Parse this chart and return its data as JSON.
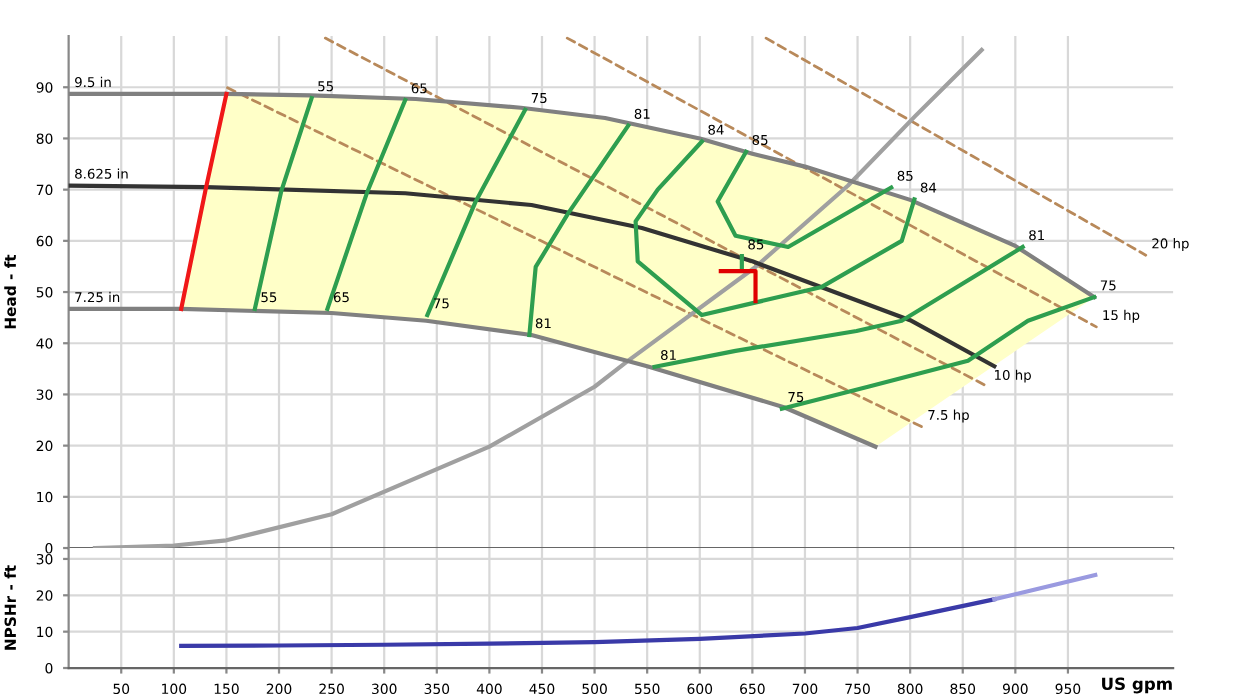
{
  "chart_data": [
    {
      "type": "line",
      "ylabel": "Head - ft",
      "xlim": [
        0,
        1050
      ],
      "ylim": [
        0,
        100
      ],
      "xticks": [
        50,
        100,
        150,
        200,
        250,
        300,
        350,
        400,
        450,
        500,
        550,
        600,
        650,
        700,
        750,
        800,
        850,
        900,
        950
      ],
      "yticks": [
        0,
        10,
        20,
        30,
        40,
        50,
        60,
        70,
        80,
        90
      ],
      "tick_labels": "y",
      "grid": true,
      "legend": false,
      "series": [
        {
          "color": "#b8895a",
          "line_style": "dashed",
          "x": [
            151,
            811
          ],
          "values": [
            89.9,
            23.7
          ]
        },
        {
          "color": "#b8895a",
          "line_style": "dashed",
          "x": [
            244,
            874
          ],
          "values": [
            99.6,
            31.5
          ]
        },
        {
          "color": "#b8895a",
          "line_style": "dashed",
          "x": [
            474,
            977
          ],
          "values": [
            99.6,
            43.2
          ]
        },
        {
          "color": "#b8895a",
          "line_style": "dashed",
          "x": [
            663,
            1024
          ],
          "values": [
            99.6,
            57.2
          ]
        },
        {
          "color": "#a0a0a0",
          "x": [
            25,
            100,
            150,
            250,
            400,
            500,
            532,
            653,
            741,
            805,
            868
          ],
          "values": [
            0,
            0.5,
            1.5,
            6.6,
            19.8,
            31.5,
            36.6,
            54.9,
            70.8,
            84.4,
            97.3
          ]
        },
        {
          "color": "#808080",
          "x": [
            0,
            150,
            230,
            330,
            430,
            510,
            600,
            650,
            700,
            800,
            900,
            975
          ],
          "values": [
            88.7,
            88.7,
            88.4,
            87.7,
            86,
            84,
            80,
            77,
            74.5,
            68,
            59,
            49
          ]
        },
        {
          "color": "#333333",
          "x": [
            0,
            130,
            320,
            440,
            545,
            650,
            800,
            880
          ],
          "values": [
            70.8,
            70.5,
            69.3,
            67,
            62.5,
            56,
            44.5,
            35.5
          ]
        },
        {
          "color": "#808080",
          "x": [
            0,
            107,
            250,
            340,
            440,
            550,
            680,
            767
          ],
          "values": [
            46.7,
            46.7,
            45.9,
            44.4,
            41.6,
            35.5,
            27.5,
            19.8
          ]
        },
        {
          "color": "#f01818",
          "x": [
            107,
            130,
            150
          ],
          "values": [
            46.7,
            69.8,
            88.7
          ]
        },
        {
          "color": "#2e9e4f",
          "x": [
            231,
            202,
            177
          ],
          "values": [
            87.9,
            69.6,
            46.7
          ]
        },
        {
          "color": "#2e9e4f",
          "x": [
            320,
            284,
            246
          ],
          "values": [
            87.5,
            69.6,
            46.7
          ]
        },
        {
          "color": "#2e9e4f",
          "x": [
            434,
            387,
            341
          ],
          "values": [
            85.6,
            67.7,
            45.5
          ]
        },
        {
          "color": "#2e9e4f",
          "x": [
            532,
            475,
            444,
            438
          ],
          "values": [
            82.5,
            65.4,
            54.9,
            41.6
          ]
        },
        {
          "color": "#2e9e4f",
          "x": [
            602,
            560,
            539,
            541,
            602,
            716,
            792,
            804
          ],
          "values": [
            79.4,
            70,
            63.8,
            56,
            45.5,
            51,
            60,
            68.1
          ]
        },
        {
          "color": "#2e9e4f",
          "x": [
            644,
            617,
            634,
            684,
            782
          ],
          "values": [
            77.4,
            67.7,
            61,
            58.8,
            70.4
          ]
        },
        {
          "color": "#2e9e4f",
          "x": [
            907,
            792,
            749,
            634,
            557
          ],
          "values": [
            58.8,
            44.4,
            42.4,
            38.5,
            35.4
          ]
        },
        {
          "color": "#2e9e4f",
          "x": [
            975,
            912,
            855,
            760,
            678
          ],
          "values": [
            49,
            44.4,
            36.6,
            31.5,
            27.2
          ]
        },
        {
          "color": "#2e9e4f",
          "x": [
            640,
            640
          ],
          "values": [
            57,
            54.5
          ]
        },
        {
          "color": "#e00000",
          "x": [
            620,
            653,
            653
          ],
          "values": [
            54.1,
            54.1,
            48.2
          ]
        }
      ],
      "annotations": [
        {
          "text": "9.5 in",
          "x": 0,
          "y": 88.7
        },
        {
          "text": "8.625 in",
          "x": 0,
          "y": 70.8
        },
        {
          "text": "7.25 in",
          "x": 0,
          "y": 46.7
        },
        {
          "text": "7.5 hp",
          "x": 811,
          "y": 23.7
        },
        {
          "text": "10 hp",
          "x": 874,
          "y": 31.5
        },
        {
          "text": "15 hp",
          "x": 977,
          "y": 43.2
        },
        {
          "text": "20 hp",
          "x": 1024,
          "y": 57.2
        },
        {
          "text": "55",
          "x": 231,
          "y": 87.9
        },
        {
          "text": "55",
          "x": 177,
          "y": 46.7
        },
        {
          "text": "65",
          "x": 320,
          "y": 87.5
        },
        {
          "text": "65",
          "x": 246,
          "y": 46.7
        },
        {
          "text": "75",
          "x": 434,
          "y": 85.6
        },
        {
          "text": "75",
          "x": 341,
          "y": 45.5
        },
        {
          "text": "81",
          "x": 532,
          "y": 82.5
        },
        {
          "text": "81",
          "x": 438,
          "y": 41.6
        },
        {
          "text": "84",
          "x": 602,
          "y": 79.4
        },
        {
          "text": "84",
          "x": 804,
          "y": 68.1
        },
        {
          "text": "85",
          "x": 644,
          "y": 77.4
        },
        {
          "text": "85",
          "x": 782,
          "y": 70.4
        },
        {
          "text": "81",
          "x": 907,
          "y": 58.8
        },
        {
          "text": "81",
          "x": 557,
          "y": 35.4
        },
        {
          "text": "75",
          "x": 975,
          "y": 49
        },
        {
          "text": "75",
          "x": 678,
          "y": 27.2
        },
        {
          "text": "85",
          "x": 640,
          "y": 57
        }
      ]
    },
    {
      "type": "line",
      "ylabel": "NPSHr - ft",
      "xlabel": "US gpm",
      "xlim": [
        0,
        1050
      ],
      "ylim": [
        0,
        33
      ],
      "xticks": [
        50,
        100,
        150,
        200,
        250,
        300,
        350,
        400,
        450,
        500,
        550,
        600,
        650,
        700,
        750,
        800,
        850,
        900,
        950
      ],
      "yticks": [
        0,
        10,
        20,
        30
      ],
      "grid": true,
      "legend": false,
      "series": [
        {
          "color": "#3a3aa8",
          "x": [
            107,
            200,
            300,
            400,
            500,
            600,
            700,
            750,
            800,
            880
          ],
          "values": [
            6.1,
            6.2,
            6.4,
            6.7,
            7.1,
            8,
            9.5,
            11,
            14,
            18.9
          ]
        },
        {
          "color": "#9a9ae0",
          "x": [
            880,
            976
          ],
          "values": [
            18.9,
            25.6
          ]
        }
      ]
    }
  ]
}
